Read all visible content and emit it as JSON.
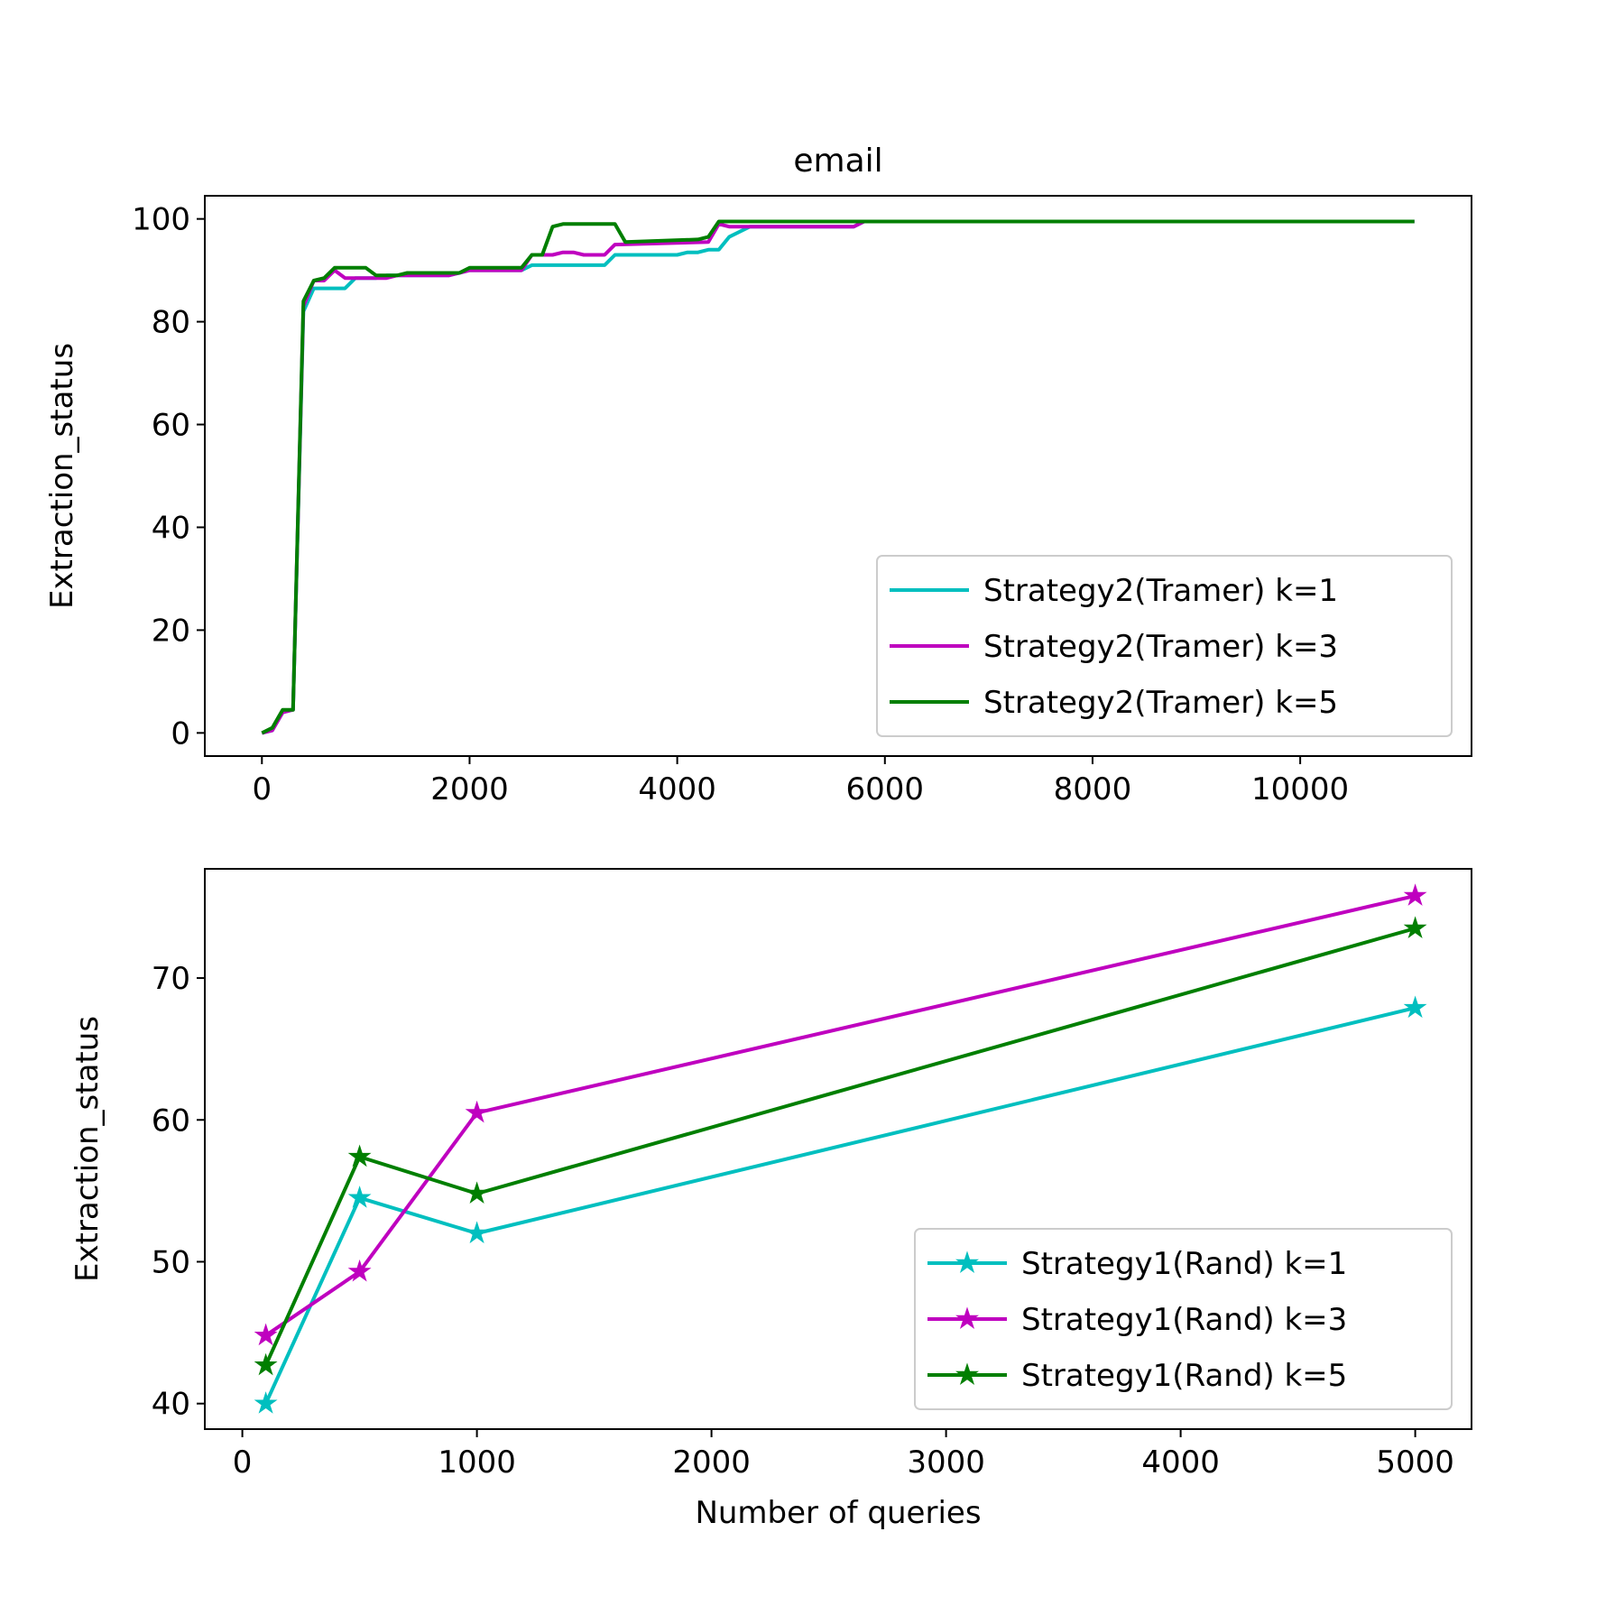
{
  "figure": {
    "title": "email"
  },
  "chart_data": [
    {
      "type": "line",
      "title": "email",
      "xlabel": "",
      "ylabel": "Extraction_status",
      "xlim": [
        -550,
        11650
      ],
      "ylim": [
        -4.5,
        104.5
      ],
      "xticks": [
        0,
        2000,
        4000,
        6000,
        8000,
        10000
      ],
      "yticks": [
        0,
        20,
        40,
        60,
        80,
        100
      ],
      "xticklabels": [
        "0",
        "2000",
        "4000",
        "6000",
        "8000",
        "10000"
      ],
      "yticklabels": [
        "0",
        "20",
        "40",
        "60",
        "80",
        "100"
      ],
      "grid": false,
      "legend_position": "lower-right",
      "series": [
        {
          "name": "Strategy2(Tramer) k=1",
          "color": "#00bfbf",
          "marker": "none",
          "points": [
            [
              0,
              0
            ],
            [
              100,
              0.5
            ],
            [
              200,
              4
            ],
            [
              300,
              4.5
            ],
            [
              400,
              82
            ],
            [
              500,
              86.5
            ],
            [
              800,
              86.5
            ],
            [
              900,
              88.5
            ],
            [
              1100,
              88.5
            ],
            [
              1200,
              89
            ],
            [
              1800,
              89
            ],
            [
              1900,
              89.5
            ],
            [
              2000,
              90
            ],
            [
              2500,
              90
            ],
            [
              2600,
              91
            ],
            [
              3300,
              91
            ],
            [
              3400,
              93
            ],
            [
              3800,
              93
            ],
            [
              4000,
              93
            ],
            [
              4100,
              93.5
            ],
            [
              4200,
              93.5
            ],
            [
              4300,
              94
            ],
            [
              4400,
              94
            ],
            [
              4500,
              96.5
            ],
            [
              4700,
              98.5
            ],
            [
              5700,
              98.5
            ],
            [
              5800,
              99.5
            ],
            [
              11100,
              99.5
            ]
          ]
        },
        {
          "name": "Strategy2(Tramer) k=3",
          "color": "#bf00bf",
          "marker": "none",
          "points": [
            [
              0,
              0
            ],
            [
              100,
              0.5
            ],
            [
              200,
              4
            ],
            [
              300,
              4.5
            ],
            [
              400,
              83
            ],
            [
              500,
              88
            ],
            [
              600,
              88
            ],
            [
              700,
              90
            ],
            [
              800,
              88.5
            ],
            [
              1200,
              88.5
            ],
            [
              1300,
              89
            ],
            [
              1800,
              89
            ],
            [
              1900,
              89.5
            ],
            [
              2000,
              90
            ],
            [
              2500,
              90
            ],
            [
              2600,
              93
            ],
            [
              2800,
              93
            ],
            [
              2900,
              93.5
            ],
            [
              3000,
              93.5
            ],
            [
              3100,
              93
            ],
            [
              3300,
              93
            ],
            [
              3400,
              95
            ],
            [
              4300,
              95.5
            ],
            [
              4400,
              99
            ],
            [
              4500,
              98.5
            ],
            [
              5700,
              98.5
            ],
            [
              5800,
              99.5
            ],
            [
              11100,
              99.5
            ]
          ]
        },
        {
          "name": "Strategy2(Tramer) k=5",
          "color": "#007f00",
          "marker": "none",
          "points": [
            [
              0,
              0
            ],
            [
              100,
              1
            ],
            [
              200,
              4.5
            ],
            [
              300,
              4.5
            ],
            [
              400,
              84
            ],
            [
              500,
              88
            ],
            [
              600,
              88.5
            ],
            [
              700,
              90.5
            ],
            [
              1000,
              90.5
            ],
            [
              1100,
              89
            ],
            [
              1300,
              89
            ],
            [
              1400,
              89.5
            ],
            [
              1800,
              89.5
            ],
            [
              1900,
              89.5
            ],
            [
              2000,
              90.5
            ],
            [
              2500,
              90.5
            ],
            [
              2600,
              93
            ],
            [
              2700,
              93
            ],
            [
              2800,
              98.5
            ],
            [
              2900,
              99
            ],
            [
              3400,
              99
            ],
            [
              3500,
              95.5
            ],
            [
              4200,
              96
            ],
            [
              4300,
              96.5
            ],
            [
              4400,
              99.5
            ],
            [
              11100,
              99.5
            ]
          ]
        }
      ]
    },
    {
      "type": "line",
      "title": "",
      "xlabel": "Number of queries",
      "ylabel": "Extraction_status",
      "xlim": [
        -160,
        5240
      ],
      "ylim": [
        38.2,
        77.7
      ],
      "xticks": [
        0,
        1000,
        2000,
        3000,
        4000,
        5000
      ],
      "yticks": [
        40,
        50,
        60,
        70
      ],
      "xticklabels": [
        "0",
        "1000",
        "2000",
        "3000",
        "4000",
        "5000"
      ],
      "yticklabels": [
        "40",
        "50",
        "60",
        "70"
      ],
      "grid": false,
      "legend_position": "lower-right",
      "series": [
        {
          "name": "Strategy1(Rand) k=1",
          "color": "#00bfbf",
          "marker": "star",
          "points": [
            [
              100,
              40.0
            ],
            [
              500,
              54.5
            ],
            [
              1000,
              52.0
            ],
            [
              5000,
              67.9
            ]
          ]
        },
        {
          "name": "Strategy1(Rand) k=3",
          "color": "#bf00bf",
          "marker": "star",
          "points": [
            [
              100,
              44.8
            ],
            [
              500,
              49.3
            ],
            [
              1000,
              60.5
            ],
            [
              5000,
              75.8
            ]
          ]
        },
        {
          "name": "Strategy1(Rand) k=5",
          "color": "#007f00",
          "marker": "star",
          "points": [
            [
              100,
              42.7
            ],
            [
              500,
              57.4
            ],
            [
              1000,
              54.8
            ],
            [
              5000,
              73.5
            ]
          ]
        }
      ]
    }
  ]
}
